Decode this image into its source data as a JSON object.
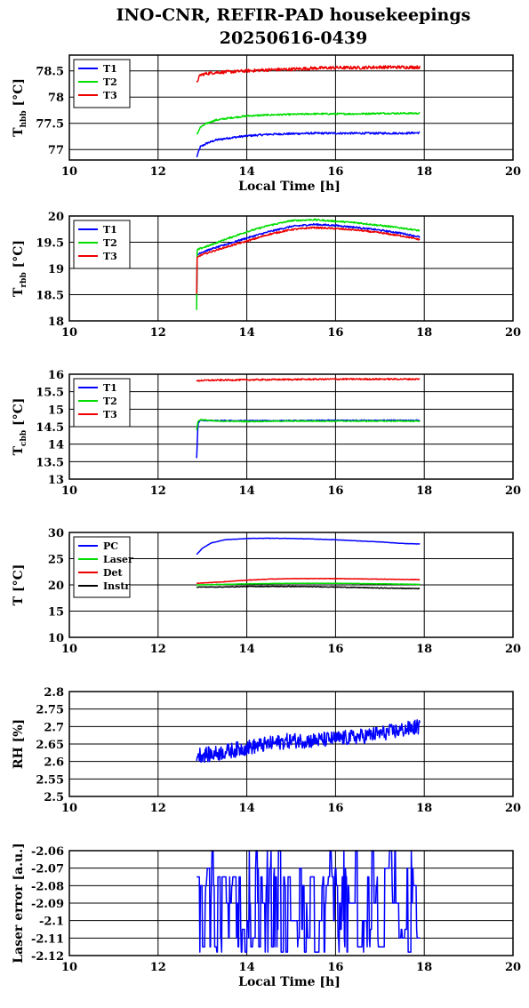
{
  "title_line1": "INO-CNR, REFIR-PAD housekeepings",
  "title_line2": "20250616-0439",
  "chart_data": [
    {
      "type": "line",
      "ylabel_main": "T",
      "ylabel_sub": "hbb",
      "ylabel_unit": " [°C]",
      "xlabel": "Local Time [h]",
      "xlim": [
        10,
        20
      ],
      "xticks": [
        10,
        12,
        14,
        16,
        18,
        20
      ],
      "ylim": [
        76.8,
        78.8
      ],
      "yticks": [
        77,
        77.5,
        78,
        78.5
      ],
      "ytick_labels": [
        "77",
        "77.5",
        "78",
        "78.5"
      ],
      "grid": true,
      "legend_position": "top-left",
      "series": [
        {
          "name": "T1",
          "color": "#0000ff",
          "noise": 0.018,
          "x": [
            12.87,
            12.95,
            13.1,
            13.3,
            13.6,
            14.0,
            14.5,
            15.0,
            15.5,
            16.0,
            16.5,
            17.0,
            17.5,
            17.9
          ],
          "y": [
            76.85,
            77.05,
            77.12,
            77.18,
            77.22,
            77.26,
            77.29,
            77.3,
            77.31,
            77.31,
            77.31,
            77.31,
            77.31,
            77.32
          ]
        },
        {
          "name": "T2",
          "color": "#00dd00",
          "noise": 0.015,
          "x": [
            12.87,
            12.95,
            13.1,
            13.3,
            13.6,
            14.0,
            14.5,
            15.0,
            15.5,
            16.0,
            16.5,
            17.0,
            17.5,
            17.9
          ],
          "y": [
            77.28,
            77.42,
            77.5,
            77.56,
            77.6,
            77.64,
            77.66,
            77.67,
            77.68,
            77.68,
            77.68,
            77.69,
            77.69,
            77.69
          ]
        },
        {
          "name": "T3",
          "color": "#ee0000",
          "noise": 0.03,
          "x": [
            12.87,
            12.95,
            13.1,
            13.3,
            13.6,
            14.0,
            14.5,
            15.0,
            15.5,
            16.0,
            16.5,
            17.0,
            17.5,
            17.9
          ],
          "y": [
            78.28,
            78.42,
            78.45,
            78.47,
            78.48,
            78.5,
            78.52,
            78.53,
            78.55,
            78.56,
            78.56,
            78.57,
            78.57,
            78.57
          ]
        }
      ]
    },
    {
      "type": "line",
      "ylabel_main": "T",
      "ylabel_sub": "rbb",
      "ylabel_unit": " [°C]",
      "xlabel": "",
      "xlim": [
        10,
        20
      ],
      "xticks": [
        10,
        12,
        14,
        16,
        18,
        20
      ],
      "ylim": [
        18,
        20
      ],
      "yticks": [
        18,
        18.5,
        19,
        19.5,
        20
      ],
      "ytick_labels": [
        "18",
        "18.5",
        "19",
        "19.5",
        "20"
      ],
      "grid": true,
      "legend_position": "top-left",
      "series": [
        {
          "name": "T1",
          "color": "#0000ff",
          "noise": 0.015,
          "x": [
            12.87,
            12.88,
            12.95,
            13.2,
            13.5,
            14.0,
            14.5,
            15.0,
            15.5,
            16.0,
            16.5,
            17.0,
            17.5,
            17.9
          ],
          "y": [
            18.3,
            19.25,
            19.3,
            19.37,
            19.45,
            19.58,
            19.7,
            19.8,
            19.84,
            19.82,
            19.78,
            19.73,
            19.67,
            19.6
          ]
        },
        {
          "name": "T2",
          "color": "#00dd00",
          "noise": 0.015,
          "x": [
            12.87,
            12.88,
            12.95,
            13.2,
            13.5,
            14.0,
            14.5,
            15.0,
            15.5,
            16.0,
            16.5,
            17.0,
            17.5,
            17.9
          ],
          "y": [
            18.2,
            19.35,
            19.38,
            19.45,
            19.55,
            19.7,
            19.82,
            19.91,
            19.93,
            19.9,
            19.87,
            19.82,
            19.77,
            19.72
          ]
        },
        {
          "name": "T3",
          "color": "#ee0000",
          "noise": 0.015,
          "x": [
            12.87,
            12.88,
            12.95,
            13.2,
            13.5,
            14.0,
            14.5,
            15.0,
            15.5,
            16.0,
            16.5,
            17.0,
            17.5,
            17.9
          ],
          "y": [
            18.5,
            19.2,
            19.25,
            19.32,
            19.4,
            19.52,
            19.65,
            19.74,
            19.78,
            19.76,
            19.73,
            19.68,
            19.62,
            19.55
          ]
        }
      ]
    },
    {
      "type": "line",
      "ylabel_main": "T",
      "ylabel_sub": "cbb",
      "ylabel_unit": " [°C]",
      "xlabel": "",
      "xlim": [
        10,
        20
      ],
      "xticks": [
        10,
        12,
        14,
        16,
        18,
        20
      ],
      "ylim": [
        13,
        16
      ],
      "yticks": [
        13,
        13.5,
        14,
        14.5,
        15,
        15.5,
        16
      ],
      "ytick_labels": [
        "13",
        "13.5",
        "14",
        "14.5",
        "15",
        "15.5",
        "16"
      ],
      "grid": true,
      "legend_position": "top-left",
      "series": [
        {
          "name": "T1",
          "color": "#0000ff",
          "noise": 0.015,
          "x": [
            12.87,
            12.9,
            12.95,
            13.3,
            14.0,
            15.0,
            16.0,
            17.0,
            17.9
          ],
          "y": [
            13.6,
            14.6,
            14.68,
            14.67,
            14.67,
            14.67,
            14.68,
            14.68,
            14.68
          ]
        },
        {
          "name": "T2",
          "color": "#00dd00",
          "noise": 0.015,
          "x": [
            12.87,
            12.9,
            12.95,
            13.3,
            14.0,
            15.0,
            16.0,
            17.0,
            17.9
          ],
          "y": [
            14.4,
            14.65,
            14.7,
            14.66,
            14.65,
            14.66,
            14.66,
            14.66,
            14.66
          ]
        },
        {
          "name": "T3",
          "color": "#ee0000",
          "noise": 0.02,
          "x": [
            12.87,
            12.95,
            13.3,
            14.0,
            15.0,
            16.0,
            17.0,
            17.9
          ],
          "y": [
            15.8,
            15.82,
            15.83,
            15.84,
            15.85,
            15.86,
            15.86,
            15.86
          ]
        }
      ]
    },
    {
      "type": "line",
      "ylabel_main": "T [°C]",
      "ylabel_sub": "",
      "ylabel_unit": "",
      "xlabel": "",
      "xlim": [
        10,
        20
      ],
      "xticks": [
        10,
        12,
        14,
        16,
        18,
        20
      ],
      "ylim": [
        10,
        30
      ],
      "yticks": [
        10,
        15,
        20,
        25,
        30
      ],
      "ytick_labels": [
        "10",
        "15",
        "20",
        "25",
        "30"
      ],
      "grid": true,
      "legend_position": "top-left",
      "series": [
        {
          "name": "PC",
          "color": "#0000ff",
          "noise": 0.03,
          "x": [
            12.87,
            13.0,
            13.2,
            13.5,
            14.0,
            14.5,
            15.0,
            15.5,
            16.0,
            16.5,
            17.0,
            17.5,
            17.9
          ],
          "y": [
            25.8,
            27.0,
            28.0,
            28.6,
            28.85,
            28.9,
            28.85,
            28.75,
            28.6,
            28.4,
            28.2,
            27.9,
            27.8
          ]
        },
        {
          "name": "Laser",
          "color": "#00dd00",
          "noise": 0.04,
          "x": [
            12.87,
            13.5,
            14.0,
            15.0,
            16.0,
            17.0,
            17.9
          ],
          "y": [
            20.0,
            20.1,
            20.2,
            20.3,
            20.3,
            20.2,
            20.1
          ]
        },
        {
          "name": "Det",
          "color": "#ee0000",
          "noise": 0.04,
          "x": [
            12.87,
            13.5,
            14.0,
            14.5,
            15.0,
            16.0,
            17.0,
            17.9
          ],
          "y": [
            20.3,
            20.6,
            20.9,
            21.1,
            21.2,
            21.2,
            21.1,
            21.0
          ]
        },
        {
          "name": "Instr",
          "color": "#000000",
          "noise": 0.06,
          "x": [
            12.87,
            13.5,
            14.0,
            15.0,
            16.0,
            17.0,
            17.9
          ],
          "y": [
            19.6,
            19.6,
            19.7,
            19.7,
            19.6,
            19.4,
            19.3
          ]
        }
      ]
    },
    {
      "type": "line",
      "ylabel_main": "RH [%]",
      "ylabel_sub": "",
      "ylabel_unit": "",
      "xlabel": "",
      "xlim": [
        10,
        20
      ],
      "xticks": [
        10,
        12,
        14,
        16,
        18,
        20
      ],
      "ylim": [
        2.5,
        2.8
      ],
      "yticks": [
        2.5,
        2.55,
        2.6,
        2.65,
        2.7,
        2.75,
        2.8
      ],
      "ytick_labels": [
        "2.5",
        "2.55",
        "2.6",
        "2.65",
        "2.7",
        "2.75",
        "2.8"
      ],
      "grid": true,
      "legend_position": "none",
      "series": [
        {
          "name": "",
          "color": "#0000ff",
          "noise": 0.022,
          "x": [
            12.87,
            13.2,
            13.6,
            14.0,
            14.5,
            15.0,
            15.5,
            16.0,
            16.5,
            17.0,
            17.5,
            17.9
          ],
          "y": [
            2.62,
            2.62,
            2.63,
            2.64,
            2.65,
            2.66,
            2.66,
            2.665,
            2.67,
            2.68,
            2.69,
            2.7
          ]
        }
      ]
    },
    {
      "type": "line",
      "ylabel_main": "Laser error [a.u.]",
      "ylabel_sub": "",
      "ylabel_unit": "",
      "xlabel": "Local Time [h]",
      "xlim": [
        10,
        20
      ],
      "xticks": [
        10,
        12,
        14,
        16,
        18,
        20
      ],
      "ylim": [
        -2.12,
        -2.06
      ],
      "yticks": [
        -2.12,
        -2.11,
        -2.1,
        -2.09,
        -2.08,
        -2.07,
        -2.06
      ],
      "ytick_labels": [
        "-2.12",
        "-2.11",
        "-2.1",
        "-2.09",
        "-2.08",
        "-2.07",
        "-2.06"
      ],
      "grid": true,
      "legend_position": "none",
      "series": [
        {
          "name": "",
          "color": "#0000ff",
          "noise": 0,
          "quantized": true,
          "levels": [
            -2.075,
            -2.09,
            -2.1,
            -2.08,
            -2.07,
            -2.06,
            -2.105,
            -2.11,
            -2.115,
            -2.118
          ],
          "x": [
            12.87,
            17.9
          ],
          "y": [
            -2.075,
            -2.075
          ]
        }
      ]
    }
  ]
}
